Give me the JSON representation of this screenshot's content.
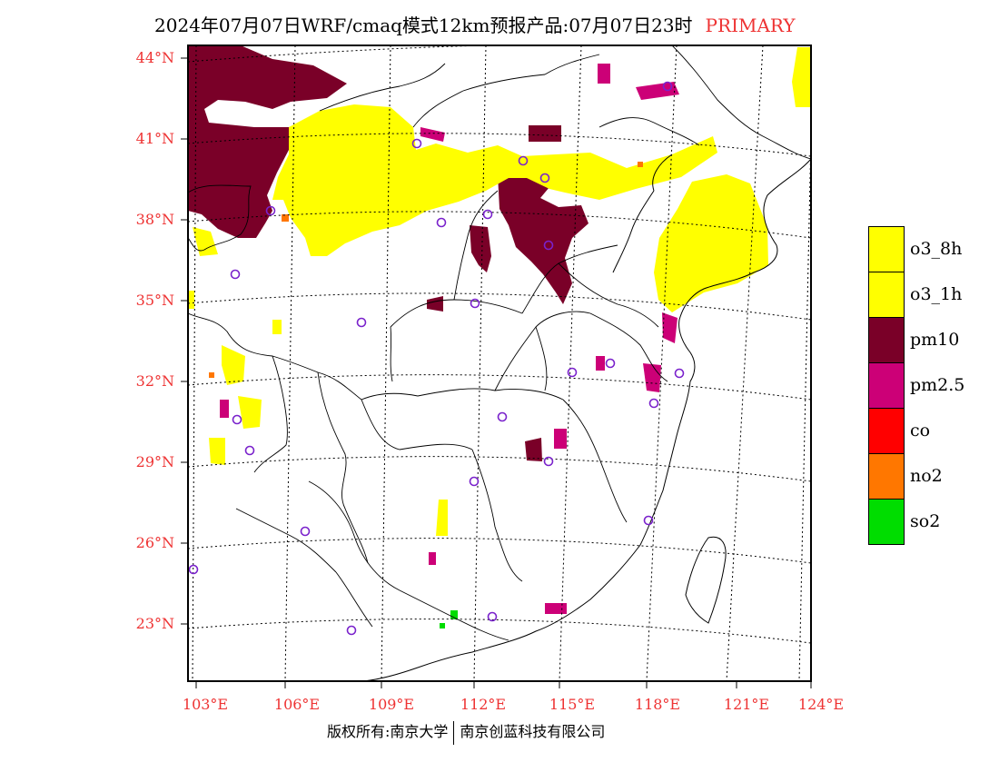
{
  "title": {
    "main": "2024年07月07日WRF/cmaq模式12km预报产品:07月07日23时",
    "tag": "PRIMARY"
  },
  "lat_labels": [
    "44°N",
    "41°N",
    "38°N",
    "35°N",
    "32°N",
    "29°N",
    "26°N",
    "23°N"
  ],
  "lon_labels": [
    "103°E",
    "106°E",
    "109°E",
    "112°E",
    "115°E",
    "118°E",
    "121°E",
    "124°E"
  ],
  "legend": [
    {
      "label": "o3_8h",
      "color": "#ffff00"
    },
    {
      "label": "o3_1h",
      "color": "#ffff00"
    },
    {
      "label": "pm10",
      "color": "#7a0028"
    },
    {
      "label": "pm2.5",
      "color": "#cc0077"
    },
    {
      "label": "co",
      "color": "#ff0000"
    },
    {
      "label": "no2",
      "color": "#ff7700"
    },
    {
      "label": "so2",
      "color": "#00dd00"
    }
  ],
  "footer": {
    "left": "版权所有:南京大学",
    "right": "南京创蓝科技有限公司"
  }
}
